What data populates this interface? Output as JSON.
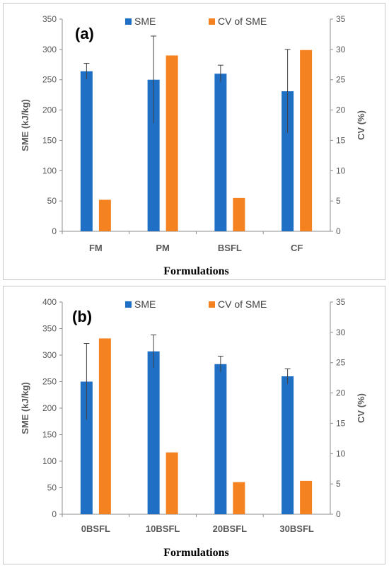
{
  "colors": {
    "sme": "#1f6fc5",
    "cv": "#f58220",
    "axis": "#8c8c8c",
    "errorbar": "#404040"
  },
  "chart_data": [
    {
      "type": "bar",
      "panel_label": "(a)",
      "categories": [
        "FM",
        "PM",
        "BSFL",
        "CF"
      ],
      "series": [
        {
          "name": "SME",
          "axis": "left",
          "values": [
            264,
            250,
            260,
            231
          ],
          "error": [
            13,
            72,
            14,
            69
          ]
        },
        {
          "name": "CV of SME",
          "axis": "right",
          "values": [
            5.2,
            29.0,
            5.5,
            29.9
          ]
        }
      ],
      "xlabel": "Formulations",
      "ylabel": "SME (kJ/kg)",
      "y2label": "CV (%)",
      "ylim": [
        0,
        350
      ],
      "yticks": [
        0,
        50,
        100,
        150,
        200,
        250,
        300,
        350
      ],
      "y2lim": [
        0,
        35
      ],
      "y2ticks": [
        0,
        5,
        10,
        15,
        20,
        25,
        30,
        35
      ],
      "grid": false,
      "legend": "top"
    },
    {
      "type": "bar",
      "panel_label": "(b)",
      "categories": [
        "0BSFL",
        "10BSFL",
        "20BSFL",
        "30BSFL"
      ],
      "series": [
        {
          "name": "SME",
          "axis": "left",
          "values": [
            250,
            307,
            283,
            260
          ],
          "error": [
            72,
            31,
            15,
            14
          ]
        },
        {
          "name": "CV of SME",
          "axis": "right",
          "values": [
            29.0,
            10.2,
            5.3,
            5.5
          ]
        }
      ],
      "xlabel": "Formulations",
      "ylabel": "SME (kJ/kg)",
      "y2label": "CV (%)",
      "ylim": [
        0,
        400
      ],
      "yticks": [
        0,
        50,
        100,
        150,
        200,
        250,
        300,
        350,
        400
      ],
      "y2lim": [
        0,
        35
      ],
      "y2ticks": [
        0,
        5,
        10,
        15,
        20,
        25,
        30,
        35
      ],
      "grid": false,
      "legend": "top"
    }
  ]
}
